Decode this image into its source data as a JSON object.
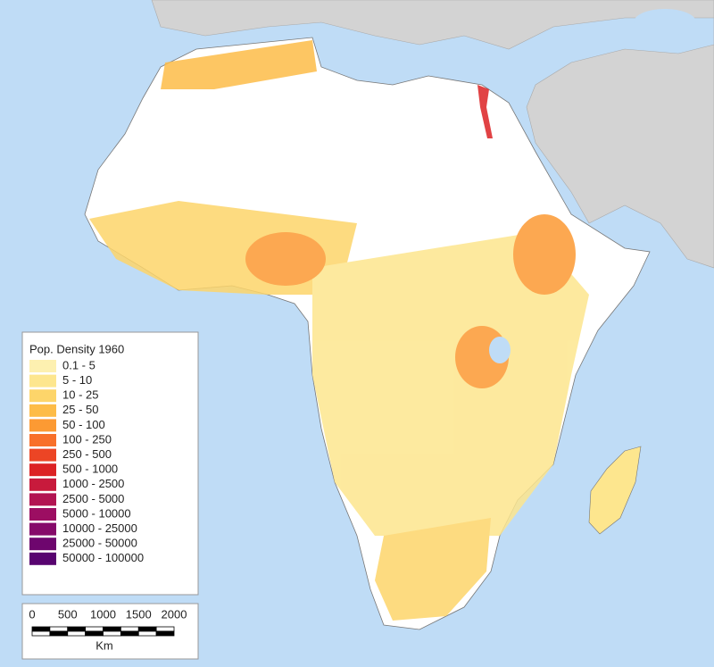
{
  "legend": {
    "title": "Pop. Density 1960",
    "items": [
      {
        "label": "0.1 - 5",
        "color": "#fdf0b0"
      },
      {
        "label": "5 - 10",
        "color": "#fde68e"
      },
      {
        "label": "10 - 25",
        "color": "#fdd56a"
      },
      {
        "label": "25 - 50",
        "color": "#fdbc48"
      },
      {
        "label": "50 - 100",
        "color": "#fc9a33"
      },
      {
        "label": "100 - 250",
        "color": "#f8702a"
      },
      {
        "label": "250 - 500",
        "color": "#ec4525"
      },
      {
        "label": "500 - 1000",
        "color": "#dc2224"
      },
      {
        "label": "1000 - 2500",
        "color": "#c81a3c"
      },
      {
        "label": "2500 - 5000",
        "color": "#b21452"
      },
      {
        "label": "5000 - 10000",
        "color": "#9c0e62"
      },
      {
        "label": "10000 - 25000",
        "color": "#860a6a"
      },
      {
        "label": "25000 - 50000",
        "color": "#6e066e"
      },
      {
        "label": "50000 - 100000",
        "color": "#580470"
      }
    ]
  },
  "scale_bar": {
    "labels": [
      "0",
      "500",
      "1000",
      "1500",
      "2000"
    ],
    "unit": "Km"
  }
}
